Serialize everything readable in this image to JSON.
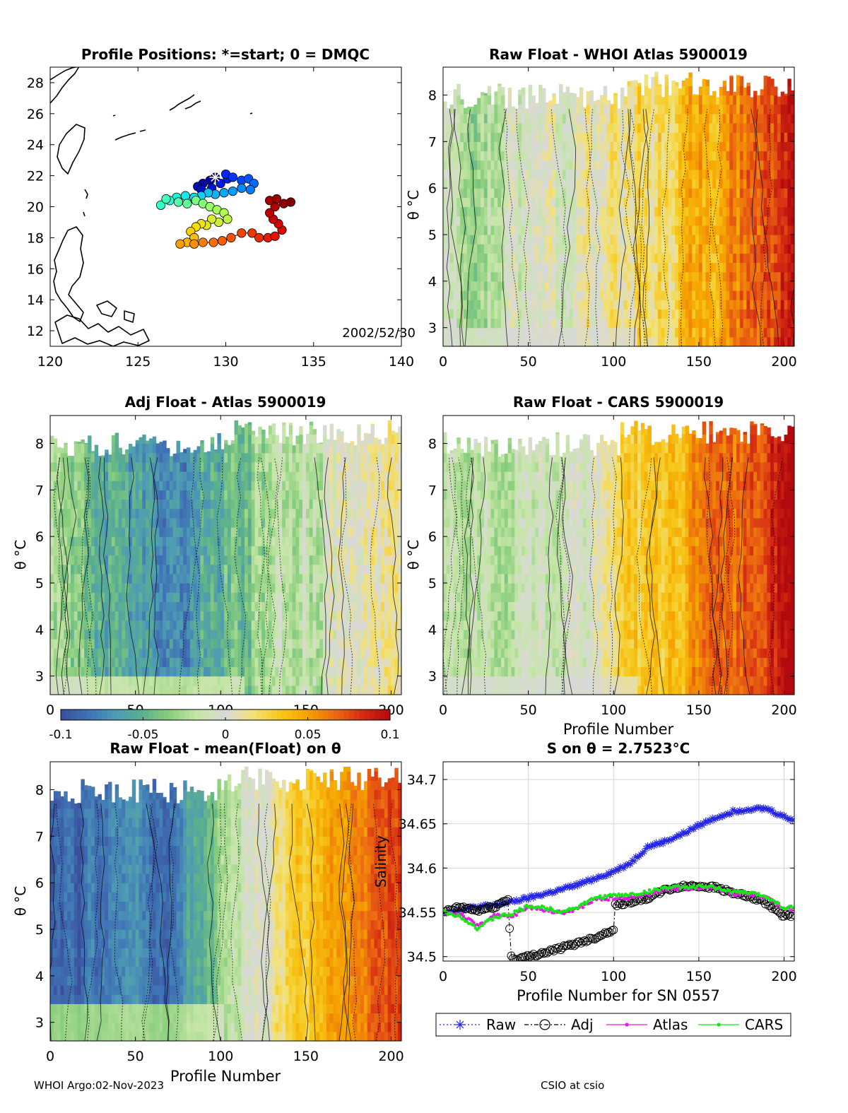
{
  "figure": {
    "footer_left": "WHOI Argo:02-Nov-2023",
    "footer_right": "CSIO at csio"
  },
  "colorbar": {
    "ticks": [
      "-0.1",
      "-0.05",
      "0",
      "0.05",
      "0.1"
    ],
    "min": -0.1,
    "max": 0.1,
    "colors": [
      "#3b4e9a",
      "#3f72b5",
      "#4e9bb5",
      "#5cb08d",
      "#8ccf7f",
      "#c7e6a8",
      "#d9d9d9",
      "#f2e27a",
      "#f7c81a",
      "#f5a000",
      "#ec6a12",
      "#d42a12",
      "#b2090e"
    ]
  },
  "chart_data": [
    {
      "id": "map",
      "type": "scatter",
      "title": "Profile Positions: *=start; 0 = DMQC",
      "annotation": "2002/52/30",
      "xlim": [
        120,
        140
      ],
      "ylim": [
        11,
        29
      ],
      "xticks": [
        "120",
        "125",
        "130",
        "135",
        "140"
      ],
      "yticks": [
        "12",
        "14",
        "16",
        "18",
        "20",
        "22",
        "24",
        "26",
        "28"
      ],
      "start": [
        129.4,
        21.9
      ],
      "track": [
        [
          129.4,
          21.9
        ],
        [
          129.1,
          21.7
        ],
        [
          128.7,
          21.5
        ],
        [
          128.4,
          21.3
        ],
        [
          128.6,
          21.1
        ],
        [
          129.2,
          21.2
        ],
        [
          129.7,
          21.5
        ],
        [
          130.1,
          21.8
        ],
        [
          130.0,
          22.1
        ],
        [
          130.4,
          21.9
        ],
        [
          130.9,
          21.7
        ],
        [
          131.3,
          21.8
        ],
        [
          131.6,
          21.5
        ],
        [
          131.4,
          21.1
        ],
        [
          130.9,
          21.2
        ],
        [
          130.4,
          21.0
        ],
        [
          129.9,
          20.9
        ],
        [
          129.4,
          20.8
        ],
        [
          129.0,
          20.9
        ],
        [
          128.6,
          20.7
        ],
        [
          128.2,
          20.6
        ],
        [
          127.7,
          20.7
        ],
        [
          127.2,
          20.6
        ],
        [
          126.8,
          20.4
        ],
        [
          126.3,
          20.1
        ],
        [
          126.6,
          20.5
        ],
        [
          127.3,
          20.3
        ],
        [
          127.8,
          20.2
        ],
        [
          128.3,
          20.4
        ],
        [
          128.7,
          20.2
        ],
        [
          129.1,
          20.0
        ],
        [
          129.5,
          19.8
        ],
        [
          129.9,
          19.6
        ],
        [
          130.1,
          19.2
        ],
        [
          129.6,
          19.0
        ],
        [
          129.2,
          19.2
        ],
        [
          128.9,
          18.8
        ],
        [
          128.6,
          18.9
        ],
        [
          128.3,
          18.7
        ],
        [
          128.0,
          18.4
        ],
        [
          128.2,
          18.0
        ],
        [
          127.8,
          17.7
        ],
        [
          127.4,
          17.6
        ],
        [
          128.2,
          17.6
        ],
        [
          128.7,
          17.7
        ],
        [
          129.3,
          17.7
        ],
        [
          129.8,
          17.8
        ],
        [
          130.3,
          18.0
        ],
        [
          130.9,
          18.3
        ],
        [
          131.5,
          18.3
        ],
        [
          131.9,
          18.0
        ],
        [
          132.4,
          18.0
        ],
        [
          132.8,
          18.1
        ],
        [
          133.2,
          18.5
        ],
        [
          133.0,
          18.9
        ],
        [
          132.7,
          19.2
        ],
        [
          132.5,
          19.6
        ],
        [
          132.8,
          20.0
        ],
        [
          132.5,
          20.4
        ],
        [
          132.9,
          20.5
        ],
        [
          133.3,
          20.2
        ],
        [
          133.7,
          20.3
        ]
      ]
    },
    {
      "id": "whoi",
      "type": "heatmap",
      "title": "Raw Float - WHOI Atlas  5900019",
      "xlim": [
        0,
        206
      ],
      "ylim": [
        2.6,
        8.6
      ],
      "xticks": [
        "0",
        "50",
        "100",
        "150",
        "200"
      ],
      "yticks": [
        "3",
        "4",
        "5",
        "6",
        "7",
        "8"
      ],
      "ylabel": "θ °C",
      "xlabel": "",
      "trend": [
        -0.02,
        -0.01,
        0.03,
        0.09
      ],
      "noise": 0.028,
      "seed": 11
    },
    {
      "id": "adj",
      "type": "heatmap",
      "title": "Adj Float - Atlas  5900019",
      "xlim": [
        0,
        206
      ],
      "ylim": [
        2.6,
        8.6
      ],
      "xticks": [
        "0",
        "50",
        "100",
        "150",
        "200"
      ],
      "yticks": [
        "3",
        "4",
        "5",
        "6",
        "7",
        "8"
      ],
      "ylabel": "θ °C",
      "xlabel": "",
      "trend": [
        -0.03,
        -0.07,
        -0.02,
        0.01
      ],
      "noise": 0.03,
      "seed": 23
    },
    {
      "id": "cars",
      "type": "heatmap",
      "title": "Raw Float - CARS  5900019",
      "xlim": [
        0,
        206
      ],
      "ylim": [
        2.6,
        8.6
      ],
      "xticks": [
        "0",
        "50",
        "100",
        "150",
        "200"
      ],
      "yticks": [
        "3",
        "4",
        "5",
        "6",
        "7",
        "8"
      ],
      "ylabel": "θ °C",
      "xlabel": "Profile Number",
      "trend": [
        -0.025,
        -0.01,
        0.04,
        0.095
      ],
      "noise": 0.025,
      "seed": 37
    },
    {
      "id": "mean",
      "type": "heatmap",
      "title": "Raw Float - mean(Float) on θ",
      "xlim": [
        0,
        206
      ],
      "ylim": [
        2.6,
        8.6
      ],
      "xticks": [
        "0",
        "50",
        "100",
        "150",
        "200"
      ],
      "yticks": [
        "3",
        "4",
        "5",
        "6",
        "7",
        "8"
      ],
      "ylabel": "θ °C",
      "xlabel": "Profile Number",
      "trend": [
        -0.09,
        -0.08,
        0.02,
        0.08
      ],
      "noise": 0.02,
      "seed": 51
    },
    {
      "id": "salinity",
      "type": "line",
      "title": "S on θ = 2.7523°C",
      "xlabel": "Profile Number for SN 0557",
      "ylabel": "Salinity",
      "xlim": [
        0,
        206
      ],
      "ylim": [
        34.495,
        34.72
      ],
      "xticks": [
        "0",
        "50",
        "100",
        "150",
        "200"
      ],
      "yticks": [
        "34.5",
        "34.55",
        "34.6",
        "34.65",
        "34.7"
      ],
      "grid": true,
      "legend": "bottom",
      "series": [
        {
          "name": "Raw",
          "color": "#2323e6",
          "marker": "star",
          "x": [
            0,
            10,
            20,
            30,
            40,
            50,
            60,
            70,
            80,
            90,
            100,
            110,
            120,
            130,
            140,
            150,
            160,
            170,
            180,
            190,
            200,
            205
          ],
          "y": [
            34.55,
            34.553,
            34.556,
            34.558,
            34.562,
            34.566,
            34.571,
            34.576,
            34.582,
            34.589,
            34.596,
            34.606,
            34.624,
            34.63,
            34.638,
            34.648,
            34.657,
            34.664,
            34.667,
            34.667,
            34.658,
            34.655
          ]
        },
        {
          "name": "Adj",
          "color": "#000000",
          "marker": "circle",
          "x": [
            0,
            10,
            20,
            30,
            38,
            40,
            42,
            50,
            60,
            70,
            80,
            90,
            100,
            101,
            110,
            120,
            130,
            140,
            150,
            160,
            170,
            180,
            190,
            200,
            205
          ],
          "y": [
            34.55,
            34.556,
            34.552,
            34.556,
            34.565,
            34.5,
            34.497,
            34.5,
            34.505,
            34.51,
            34.516,
            34.522,
            34.531,
            34.558,
            34.562,
            34.566,
            34.575,
            34.579,
            34.58,
            34.578,
            34.572,
            34.567,
            34.56,
            34.546,
            34.546
          ]
        },
        {
          "name": "Atlas",
          "color": "#e619e6",
          "marker": "dot",
          "x": [
            0,
            10,
            20,
            30,
            40,
            50,
            60,
            70,
            80,
            90,
            100,
            110,
            120,
            130,
            140,
            150,
            160,
            170,
            180,
            190,
            200,
            205
          ],
          "y": [
            34.55,
            34.548,
            34.535,
            34.546,
            34.545,
            34.556,
            34.553,
            34.549,
            34.555,
            34.565,
            34.566,
            34.567,
            34.57,
            34.576,
            34.577,
            34.578,
            34.578,
            34.571,
            34.571,
            34.567,
            34.553,
            34.554
          ]
        },
        {
          "name": "CARS",
          "color": "#19e619",
          "marker": "dot",
          "x": [
            0,
            10,
            20,
            30,
            40,
            50,
            60,
            70,
            80,
            90,
            100,
            110,
            120,
            130,
            140,
            150,
            160,
            170,
            180,
            190,
            200,
            205
          ],
          "y": [
            34.55,
            34.546,
            34.532,
            34.544,
            34.548,
            34.557,
            34.555,
            34.551,
            34.557,
            34.567,
            34.569,
            34.57,
            34.573,
            34.578,
            34.578,
            34.579,
            34.578,
            34.573,
            34.572,
            34.568,
            34.555,
            34.556
          ]
        }
      ]
    }
  ]
}
